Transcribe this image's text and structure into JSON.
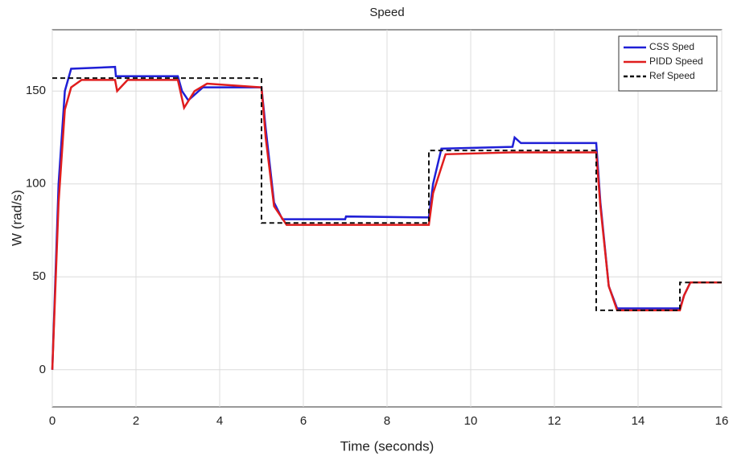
{
  "chart_data": {
    "type": "line",
    "title": "Speed",
    "x_label": "Time (seconds)",
    "y_label": "W (rad/s)",
    "xlim": [
      0,
      16
    ],
    "xticks": [
      0,
      2,
      4,
      6,
      8,
      10,
      12,
      14,
      16
    ],
    "ylim": [
      -20,
      183
    ],
    "yticks": [
      0,
      50,
      100,
      150
    ],
    "grid": true,
    "legend": "top-right",
    "series": [
      {
        "name": "CSS Sped",
        "color": "#1f1fd6",
        "dash": false,
        "x": [
          0,
          0.15,
          0.3,
          0.45,
          1.5,
          1.52,
          3.0,
          3.1,
          3.25,
          3.6,
          5.0,
          5.1,
          5.3,
          5.5,
          7.0,
          7.02,
          9.0,
          9.1,
          9.3,
          11.0,
          11.05,
          11.2,
          13.0,
          13.1,
          13.3,
          13.5,
          15.0,
          15.1,
          15.25,
          16
        ],
        "values": [
          0,
          100,
          150,
          162,
          163,
          158,
          158,
          150,
          145,
          152,
          152,
          130,
          90,
          81,
          81,
          82.5,
          82,
          100,
          119,
          120,
          125,
          122,
          122,
          90,
          45,
          33,
          33,
          40,
          47,
          47
        ]
      },
      {
        "name": "PIDD Speed",
        "color": "#e01d1d",
        "dash": false,
        "x": [
          0,
          0.15,
          0.3,
          0.45,
          0.7,
          1.5,
          1.55,
          1.8,
          3.0,
          3.15,
          3.4,
          3.7,
          5.0,
          5.1,
          5.3,
          5.6,
          7.0,
          9.0,
          9.1,
          9.4,
          11.0,
          13.0,
          13.1,
          13.3,
          13.5,
          15.0,
          15.1,
          15.25,
          16
        ],
        "values": [
          0,
          90,
          140,
          152,
          156,
          156,
          150,
          156,
          156,
          141,
          150,
          154,
          152,
          125,
          88,
          78,
          78,
          78,
          95,
          116,
          117,
          117,
          88,
          45,
          32,
          32,
          40,
          47,
          47
        ]
      },
      {
        "name": "Ref Speed",
        "color": "#111111",
        "dash": true,
        "x": [
          0,
          5,
          5,
          9,
          9,
          13,
          13,
          15,
          15,
          16
        ],
        "values": [
          157,
          157,
          79,
          79,
          118,
          118,
          32,
          32,
          47,
          47
        ]
      }
    ]
  }
}
